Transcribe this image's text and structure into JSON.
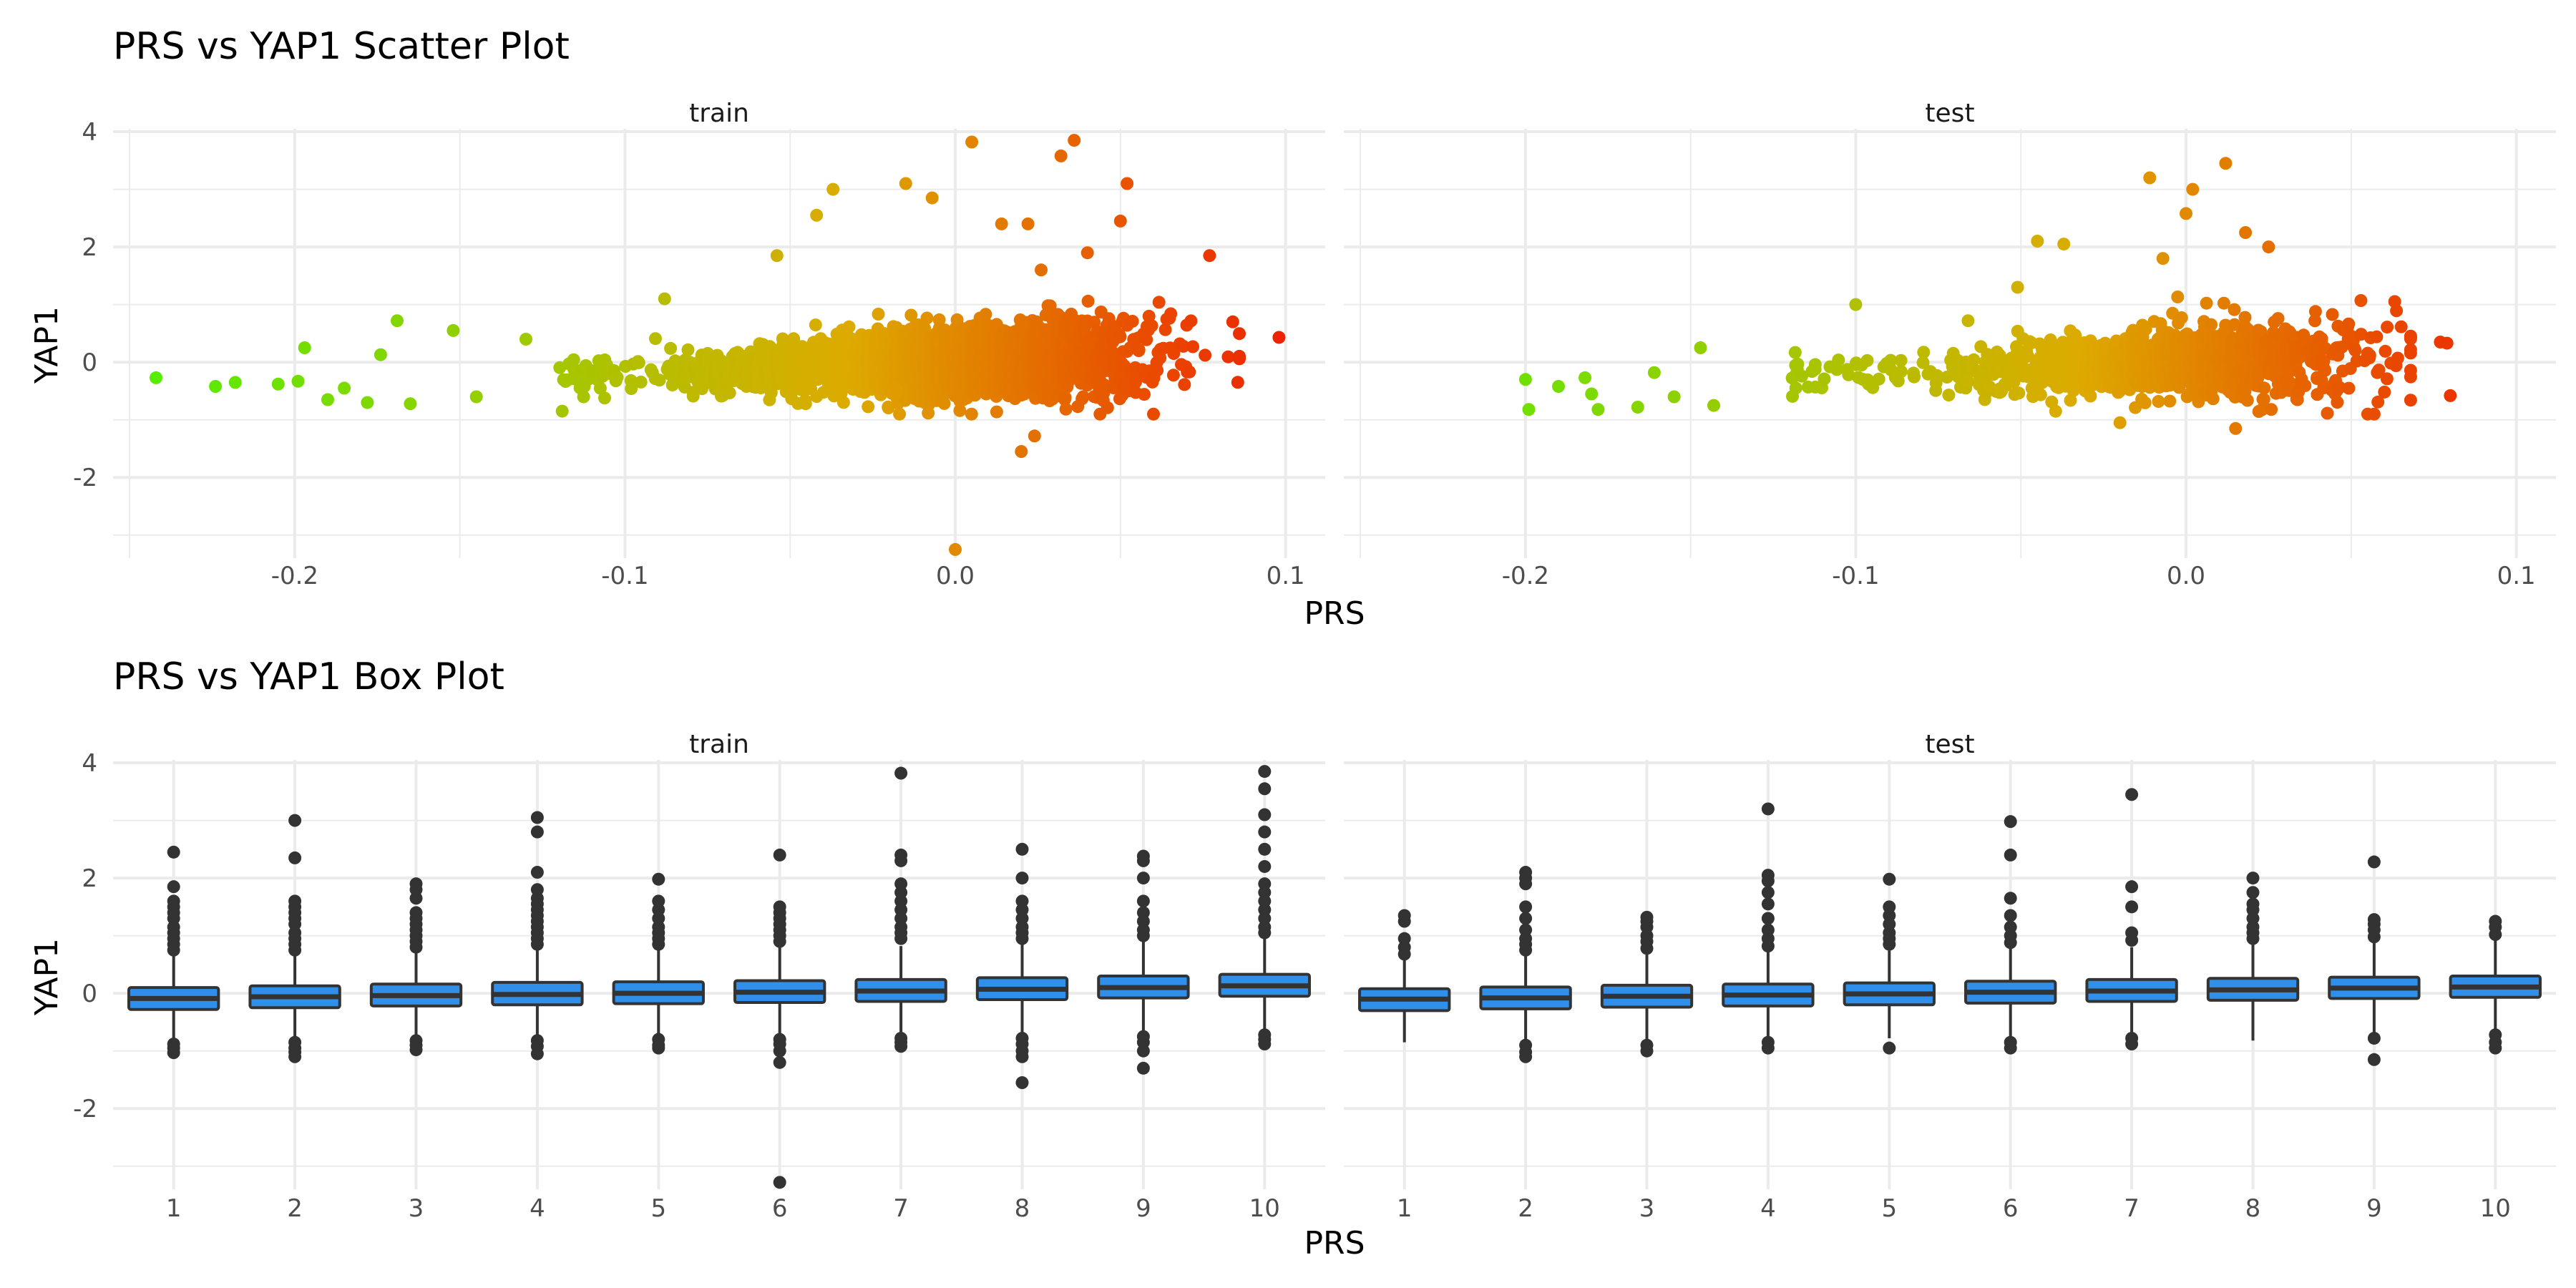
{
  "figure": {
    "top_title": "PRS vs YAP1 Scatter Plot",
    "bottom_title": "PRS vs YAP1 Box Plot",
    "xlabel": "PRS",
    "ylabel": "YAP1",
    "panel_labels": [
      "train",
      "test"
    ]
  },
  "chart_data": [
    {
      "type": "scatter",
      "title": "PRS vs YAP1 Scatter Plot",
      "xlabel": "PRS",
      "ylabel": "YAP1",
      "facets": [
        "train",
        "test"
      ],
      "xlim": [
        -0.255,
        0.112
      ],
      "ylim": [
        -3.4,
        4.05
      ],
      "x_ticks": [
        -0.2,
        -0.1,
        0.0,
        0.1
      ],
      "x_tick_labels": [
        "-0.2",
        "-0.1",
        "0.0",
        "0.1"
      ],
      "y_ticks": [
        -2,
        0,
        2,
        4
      ],
      "y_tick_labels": [
        "-2",
        "0",
        "2",
        "4"
      ],
      "grid": true,
      "color_scale": {
        "low": "#55ee00",
        "mid": "#ddaa00",
        "high": "#ee2200"
      },
      "series": [
        {
          "facet": "train",
          "x_range": [
            -0.242,
            0.098
          ],
          "n_points": 2400,
          "outliers": [
            [
              -0.242,
              -0.27
            ],
            [
              -0.224,
              -0.42
            ],
            [
              -0.218,
              -0.35
            ],
            [
              -0.205,
              -0.38
            ],
            [
              -0.199,
              -0.33
            ],
            [
              -0.197,
              0.25
            ],
            [
              -0.19,
              -0.65
            ],
            [
              -0.185,
              -0.45
            ],
            [
              -0.178,
              -0.7
            ],
            [
              -0.174,
              0.13
            ],
            [
              -0.169,
              0.72
            ],
            [
              -0.165,
              -0.72
            ],
            [
              -0.152,
              0.55
            ],
            [
              -0.145,
              -0.6
            ],
            [
              -0.13,
              0.4
            ],
            [
              -0.119,
              -0.85
            ],
            [
              -0.088,
              1.1
            ],
            [
              -0.054,
              1.85
            ],
            [
              -0.042,
              2.55
            ],
            [
              -0.037,
              3.0
            ],
            [
              -0.015,
              3.1
            ],
            [
              -0.007,
              2.85
            ],
            [
              0.005,
              3.82
            ],
            [
              0.014,
              2.4
            ],
            [
              0.022,
              2.4
            ],
            [
              0.026,
              1.6
            ],
            [
              0.032,
              3.58
            ],
            [
              0.036,
              3.85
            ],
            [
              0.05,
              2.45
            ],
            [
              0.052,
              3.1
            ],
            [
              0.077,
              1.85
            ],
            [
              0.098,
              0.43
            ],
            [
              0.0,
              -3.25
            ],
            [
              0.02,
              -1.55
            ],
            [
              0.024,
              -1.28
            ],
            [
              0.06,
              -0.9
            ],
            [
              0.084,
              0.7
            ],
            [
              0.04,
              1.9
            ]
          ]
        },
        {
          "facet": "test",
          "x_range": [
            -0.2,
            0.08
          ],
          "n_points": 1200,
          "outliers": [
            [
              -0.2,
              -0.3
            ],
            [
              -0.199,
              -0.82
            ],
            [
              -0.19,
              -0.42
            ],
            [
              -0.182,
              -0.27
            ],
            [
              -0.18,
              -0.55
            ],
            [
              -0.178,
              -0.82
            ],
            [
              -0.166,
              -0.78
            ],
            [
              -0.161,
              -0.18
            ],
            [
              -0.155,
              -0.6
            ],
            [
              -0.147,
              0.25
            ],
            [
              -0.143,
              -0.75
            ],
            [
              -0.1,
              1.0
            ],
            [
              -0.066,
              0.72
            ],
            [
              -0.051,
              1.3
            ],
            [
              -0.045,
              2.1
            ],
            [
              -0.037,
              2.05
            ],
            [
              -0.007,
              1.8
            ],
            [
              0.002,
              3.0
            ],
            [
              -0.011,
              3.2
            ],
            [
              0.012,
              3.45
            ],
            [
              0.0,
              2.58
            ],
            [
              0.018,
              2.25
            ],
            [
              0.025,
              2.0
            ],
            [
              0.041,
              -0.05
            ],
            [
              0.055,
              -0.9
            ],
            [
              0.015,
              -1.15
            ],
            [
              -0.02,
              -1.05
            ],
            [
              0.077,
              0.35
            ],
            [
              0.08,
              -0.58
            ],
            [
              0.079,
              0.33
            ]
          ]
        }
      ]
    },
    {
      "type": "box",
      "title": "PRS vs YAP1 Box Plot",
      "xlabel": "PRS",
      "ylabel": "YAP1",
      "facets": [
        "train",
        "test"
      ],
      "categories": [
        "1",
        "2",
        "3",
        "4",
        "5",
        "6",
        "7",
        "8",
        "9",
        "10"
      ],
      "ylim": [
        -3.4,
        4.05
      ],
      "y_ticks": [
        -2,
        0,
        2,
        4
      ],
      "y_tick_labels": [
        "-2",
        "0",
        "2",
        "4"
      ],
      "grid": true,
      "box_color": "#2f8fea",
      "series": [
        {
          "facet": "train",
          "boxes": [
            {
              "category": "1",
              "q1": -0.28,
              "median": -0.09,
              "q3": 0.1,
              "whisker_low": -0.85,
              "whisker_high": 0.65,
              "outliers_high": [
                0.75,
                0.85,
                0.95,
                1.05,
                1.15,
                1.3,
                1.4,
                1.5,
                1.6,
                1.85,
                2.45
              ],
              "outliers_low": [
                -0.88,
                -0.95,
                -1.03
              ]
            },
            {
              "category": "2",
              "q1": -0.25,
              "median": -0.06,
              "q3": 0.13,
              "whisker_low": -0.82,
              "whisker_high": 0.68,
              "outliers_high": [
                0.75,
                0.85,
                0.95,
                1.05,
                1.2,
                1.3,
                1.4,
                1.5,
                1.6,
                2.35,
                3.0
              ],
              "outliers_low": [
                -0.85,
                -0.95,
                -1.02,
                -1.1
              ]
            },
            {
              "category": "3",
              "q1": -0.22,
              "median": -0.04,
              "q3": 0.16,
              "whisker_low": -0.78,
              "whisker_high": 0.7,
              "outliers_high": [
                0.8,
                0.9,
                1.0,
                1.1,
                1.2,
                1.3,
                1.4,
                1.65,
                1.8,
                1.9
              ],
              "outliers_low": [
                -0.82,
                -0.9,
                -0.98
              ]
            },
            {
              "category": "4",
              "q1": -0.2,
              "median": -0.02,
              "q3": 0.19,
              "whisker_low": -0.78,
              "whisker_high": 0.75,
              "outliers_high": [
                0.85,
                0.95,
                1.05,
                1.15,
                1.25,
                1.35,
                1.45,
                1.55,
                1.65,
                1.8,
                2.1,
                2.8,
                3.05
              ],
              "outliers_low": [
                -0.82,
                -0.92,
                -1.05
              ]
            },
            {
              "category": "5",
              "q1": -0.18,
              "median": 0.0,
              "q3": 0.2,
              "whisker_low": -0.75,
              "whisker_high": 0.75,
              "outliers_high": [
                0.85,
                0.95,
                1.05,
                1.15,
                1.3,
                1.45,
                1.6,
                1.98
              ],
              "outliers_low": [
                -0.8,
                -0.9,
                -0.95
              ]
            },
            {
              "category": "6",
              "q1": -0.16,
              "median": 0.02,
              "q3": 0.22,
              "whisker_low": -0.75,
              "whisker_high": 0.8,
              "outliers_high": [
                0.9,
                1.0,
                1.1,
                1.2,
                1.3,
                1.4,
                1.5,
                2.4
              ],
              "outliers_low": [
                -0.8,
                -0.88,
                -1.0,
                -1.2,
                -3.28
              ]
            },
            {
              "category": "7",
              "q1": -0.14,
              "median": 0.04,
              "q3": 0.24,
              "whisker_low": -0.72,
              "whisker_high": 0.82,
              "outliers_high": [
                0.95,
                1.05,
                1.15,
                1.3,
                1.45,
                1.6,
                1.75,
                1.9,
                2.3,
                2.4,
                3.82
              ],
              "outliers_low": [
                -0.78,
                -0.85,
                -0.92
              ]
            },
            {
              "category": "8",
              "q1": -0.11,
              "median": 0.07,
              "q3": 0.27,
              "whisker_low": -0.7,
              "whisker_high": 0.85,
              "outliers_high": [
                0.95,
                1.05,
                1.15,
                1.3,
                1.45,
                1.6,
                2.0,
                2.5
              ],
              "outliers_low": [
                -0.78,
                -0.88,
                -1.0,
                -1.1,
                -1.55
              ]
            },
            {
              "category": "9",
              "q1": -0.08,
              "median": 0.1,
              "q3": 0.3,
              "whisker_low": -0.68,
              "whisker_high": 0.9,
              "outliers_high": [
                1.0,
                1.1,
                1.25,
                1.4,
                1.6,
                2.0,
                2.3,
                2.38
              ],
              "outliers_low": [
                -0.75,
                -0.85,
                -1.0,
                -1.3
              ]
            },
            {
              "category": "10",
              "q1": -0.05,
              "median": 0.13,
              "q3": 0.33,
              "whisker_low": -0.65,
              "whisker_high": 0.95,
              "outliers_high": [
                1.05,
                1.15,
                1.3,
                1.45,
                1.6,
                1.75,
                1.9,
                2.2,
                2.5,
                2.8,
                3.1,
                3.55,
                3.85
              ],
              "outliers_low": [
                -0.72,
                -0.8,
                -0.88
              ]
            }
          ]
        },
        {
          "facet": "test",
          "boxes": [
            {
              "category": "1",
              "q1": -0.3,
              "median": -0.1,
              "q3": 0.08,
              "whisker_low": -0.85,
              "whisker_high": 0.58,
              "outliers_high": [
                0.68,
                0.8,
                0.95,
                1.25,
                1.35
              ],
              "outliers_low": []
            },
            {
              "category": "2",
              "q1": -0.27,
              "median": -0.08,
              "q3": 0.11,
              "whisker_low": -0.82,
              "whisker_high": 0.65,
              "outliers_high": [
                0.75,
                0.85,
                0.95,
                1.1,
                1.3,
                1.5,
                1.9,
                2.0,
                2.1
              ],
              "outliers_low": [
                -0.9,
                -1.02,
                -1.1
              ]
            },
            {
              "category": "3",
              "q1": -0.24,
              "median": -0.05,
              "q3": 0.14,
              "whisker_low": -0.8,
              "whisker_high": 0.68,
              "outliers_high": [
                0.78,
                0.9,
                1.0,
                1.15,
                1.25,
                1.32
              ],
              "outliers_low": [
                -0.9,
                -1.0
              ]
            },
            {
              "category": "4",
              "q1": -0.22,
              "median": -0.03,
              "q3": 0.16,
              "whisker_low": -0.8,
              "whisker_high": 0.72,
              "outliers_high": [
                0.82,
                0.95,
                1.1,
                1.3,
                1.55,
                1.75,
                1.95,
                2.05,
                3.2
              ],
              "outliers_low": [
                -0.85,
                -0.95
              ]
            },
            {
              "category": "5",
              "q1": -0.2,
              "median": -0.01,
              "q3": 0.18,
              "whisker_low": -0.78,
              "whisker_high": 0.74,
              "outliers_high": [
                0.85,
                0.95,
                1.05,
                1.2,
                1.35,
                1.5,
                1.98
              ],
              "outliers_low": [
                -0.95
              ]
            },
            {
              "category": "6",
              "q1": -0.17,
              "median": 0.02,
              "q3": 0.21,
              "whisker_low": -0.76,
              "whisker_high": 0.78,
              "outliers_high": [
                0.88,
                1.0,
                1.15,
                1.35,
                1.65,
                2.4,
                2.98
              ],
              "outliers_low": [
                -0.85,
                -0.95
              ]
            },
            {
              "category": "7",
              "q1": -0.14,
              "median": 0.04,
              "q3": 0.24,
              "whisker_low": -0.74,
              "whisker_high": 0.8,
              "outliers_high": [
                0.92,
                1.05,
                1.5,
                1.85,
                3.45
              ],
              "outliers_low": [
                -0.78,
                -0.88
              ]
            },
            {
              "category": "8",
              "q1": -0.12,
              "median": 0.06,
              "q3": 0.26,
              "whisker_low": -0.82,
              "whisker_high": 0.84,
              "outliers_high": [
                0.95,
                1.05,
                1.15,
                1.3,
                1.45,
                1.55,
                1.75,
                2.0
              ],
              "outliers_low": []
            },
            {
              "category": "9",
              "q1": -0.09,
              "median": 0.09,
              "q3": 0.28,
              "whisker_low": -0.68,
              "whisker_high": 0.88,
              "outliers_high": [
                0.98,
                1.1,
                1.2,
                1.28,
                2.28
              ],
              "outliers_low": [
                -0.78,
                -1.15
              ]
            },
            {
              "category": "10",
              "q1": -0.07,
              "median": 0.11,
              "q3": 0.3,
              "whisker_low": -0.62,
              "whisker_high": 0.92,
              "outliers_high": [
                1.02,
                1.15,
                1.25
              ],
              "outliers_low": [
                -0.72,
                -0.85,
                -0.95
              ]
            }
          ]
        }
      ]
    }
  ]
}
